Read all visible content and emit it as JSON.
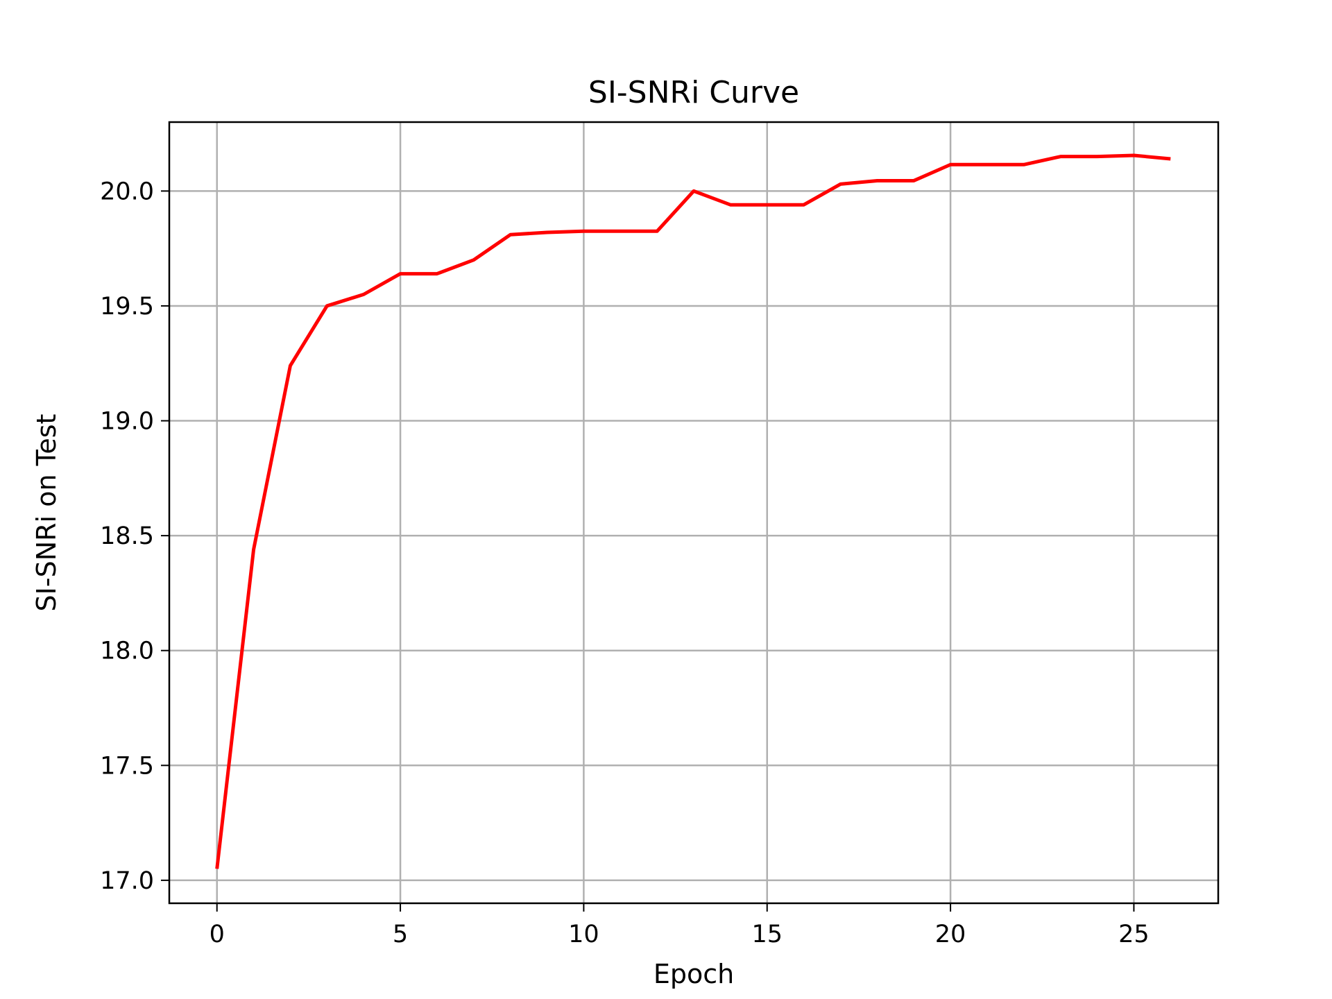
{
  "chart_data": {
    "type": "line",
    "title": "SI-SNRi Curve",
    "xlabel": "Epoch",
    "ylabel": "SI-SNRi on Test",
    "xlim": [
      -1.3,
      27.3
    ],
    "ylim": [
      16.9,
      20.3
    ],
    "xticks": [
      0,
      5,
      10,
      15,
      20,
      25
    ],
    "yticks": [
      17.0,
      17.5,
      18.0,
      18.5,
      19.0,
      19.5,
      20.0
    ],
    "grid": true,
    "series": [
      {
        "color": "#ff0000",
        "x": [
          0,
          1,
          2,
          3,
          4,
          5,
          6,
          7,
          8,
          9,
          10,
          11,
          12,
          13,
          14,
          15,
          16,
          17,
          18,
          19,
          20,
          21,
          22,
          23,
          24,
          25,
          26
        ],
        "y": [
          17.05,
          18.44,
          19.24,
          19.5,
          19.55,
          19.64,
          19.64,
          19.7,
          19.81,
          19.82,
          19.825,
          19.825,
          19.825,
          20.0,
          19.94,
          19.94,
          19.94,
          20.03,
          20.045,
          20.045,
          20.115,
          20.115,
          20.115,
          20.15,
          20.15,
          20.155,
          20.14
        ]
      }
    ]
  }
}
